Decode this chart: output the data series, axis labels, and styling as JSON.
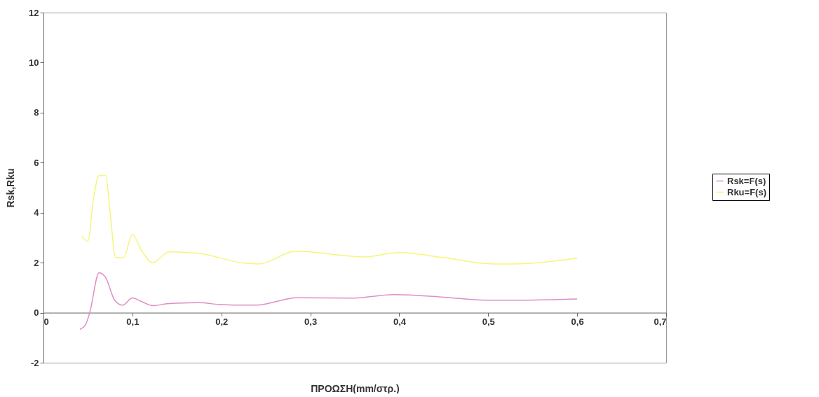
{
  "chart_data": {
    "type": "line",
    "xlabel": "ΠΡΟΩΣΗ(mm/στρ.)",
    "ylabel": "Rsk,Rku",
    "xlim": [
      0,
      0.7
    ],
    "xticks": [
      {
        "value": 0,
        "label": "0"
      },
      {
        "value": 0.1,
        "label": "0,1"
      },
      {
        "value": 0.2,
        "label": "0,2"
      },
      {
        "value": 0.3,
        "label": "0,3"
      },
      {
        "value": 0.4,
        "label": "0,4"
      },
      {
        "value": 0.5,
        "label": "0,5"
      },
      {
        "value": 0.6,
        "label": "0,6"
      },
      {
        "value": 0.7,
        "label": "0,7"
      }
    ],
    "ylim": [
      -2,
      12
    ],
    "yticks": [
      -2,
      0,
      2,
      4,
      6,
      8,
      10,
      12
    ],
    "grid": false,
    "legend": "right",
    "marker": "none",
    "line_style": "solid",
    "series": [
      {
        "name": "Rsk=F(s)",
        "color": "#e08cc8",
        "x": [
          0.041,
          0.047,
          0.052,
          0.0625,
          0.07,
          0.08,
          0.089,
          0.1,
          0.11,
          0.123,
          0.139,
          0.175,
          0.197,
          0.22,
          0.24,
          0.268,
          0.284,
          0.347,
          0.394,
          0.45,
          0.497,
          0.537,
          0.6
        ],
        "values": [
          -0.67,
          -0.5,
          0,
          1.6,
          1.4,
          0.5,
          0.3,
          0.59,
          0.45,
          0.28,
          0.36,
          0.4,
          0.33,
          0.3,
          0.3,
          0.5,
          0.6,
          0.58,
          0.72,
          0.62,
          0.5,
          0.5,
          0.55
        ]
      },
      {
        "name": "Rku=F(s)",
        "color": "#f5f57a",
        "x": [
          0.043,
          0.05,
          0.056,
          0.0625,
          0.07,
          0.075,
          0.081,
          0.09,
          0.1,
          0.11,
          0.123,
          0.141,
          0.175,
          0.226,
          0.242,
          0.284,
          0.36,
          0.4,
          0.45,
          0.505,
          0.53,
          0.6
        ],
        "values": [
          3.05,
          2.85,
          4.5,
          5.48,
          5.48,
          4.0,
          2.2,
          2.2,
          3.13,
          2.5,
          2.0,
          2.43,
          2.37,
          1.98,
          1.95,
          2.46,
          2.23,
          2.4,
          2.2,
          1.95,
          1.95,
          2.18
        ]
      }
    ]
  }
}
